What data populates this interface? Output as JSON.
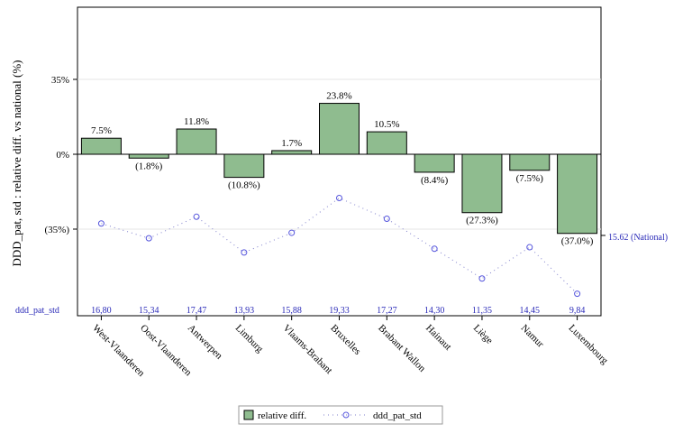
{
  "chart_data": {
    "type": "bar",
    "ylabel": "DDD_pat, std : relative diff. vs national (%)",
    "ylim": [
      -72,
      72
    ],
    "ytick_labels": [
      "(35%)",
      "0%",
      "35%"
    ],
    "ytick_values": [
      -35,
      0,
      35
    ],
    "categories": [
      "West-Vlaanderen",
      "Oost-Vlaanderen",
      "Antwerpen",
      "Limburg",
      "Vlaams-Brabant",
      "Bruxelles",
      "Brabant Wallon",
      "Hainaut",
      "Liège",
      "Namur",
      "Luxembourg"
    ],
    "series": [
      {
        "name": "relative diff.",
        "type": "bar",
        "color": "#8fbc8f",
        "values": [
          7.5,
          -1.8,
          11.8,
          -10.8,
          1.7,
          23.8,
          10.5,
          -8.4,
          -27.3,
          -7.5,
          -37.0
        ],
        "labels": [
          "7.5%",
          "(1.8%)",
          "11.8%",
          "(10.8%)",
          "1.7%",
          "23.8%",
          "10.5%",
          "(8.4%)",
          "(27.3%)",
          "(7.5%)",
          "(37.0%)"
        ]
      },
      {
        "name": "ddd_pat_std",
        "type": "line-dotted-markers",
        "color": "#6666dd",
        "values": [
          16.8,
          15.34,
          17.47,
          13.93,
          15.88,
          19.33,
          17.27,
          14.3,
          11.35,
          14.45,
          9.84
        ],
        "labels": [
          "16,80",
          "15,34",
          "17,47",
          "13,93",
          "15,88",
          "19,33",
          "17,27",
          "14,30",
          "11,35",
          "14,45",
          "9,84"
        ]
      }
    ],
    "national": {
      "value": 15.62,
      "label": "15.62 (National)"
    },
    "table_row_label": "ddd_pat_std",
    "legend": {
      "position": "bottom",
      "items": [
        "relative diff.",
        "ddd_pat_std"
      ]
    },
    "grid": "horizontal"
  }
}
